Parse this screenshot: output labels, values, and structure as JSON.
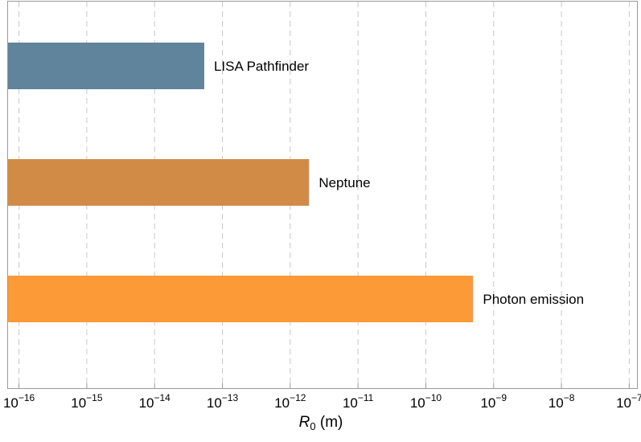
{
  "chart_data": {
    "type": "bar",
    "orientation": "horizontal",
    "xscale": "log",
    "xlim": [
      6.9e-17,
      1.3e-07
    ],
    "xlabel_symbol": "R",
    "xlabel_sub": "0",
    "xlabel_unit": " (m)",
    "grid": {
      "vertical": "dashed",
      "horizontal": false
    },
    "ticks": [
      {
        "value": 1e-16,
        "base": "10",
        "exp": "−16"
      },
      {
        "value": 1e-15,
        "base": "10",
        "exp": "−15"
      },
      {
        "value": 1e-14,
        "base": "10",
        "exp": "−14"
      },
      {
        "value": 1e-13,
        "base": "10",
        "exp": "−13"
      },
      {
        "value": 1e-12,
        "base": "10",
        "exp": "−12"
      },
      {
        "value": 1e-11,
        "base": "10",
        "exp": "−11"
      },
      {
        "value": 1e-10,
        "base": "10",
        "exp": "−10"
      },
      {
        "value": 1e-09,
        "base": "10",
        "exp": "−9"
      },
      {
        "value": 1e-08,
        "base": "10",
        "exp": "−8"
      },
      {
        "value": 1e-07,
        "base": "10",
        "exp": "−7"
      }
    ],
    "categories": [
      "LISA Pathfinder",
      "Neptune",
      "Photon emission"
    ],
    "values": [
      5.4e-14,
      1.9e-12,
      5e-10
    ],
    "colors": [
      "#5f849c",
      "#d28b47",
      "#fd9a38"
    ]
  }
}
